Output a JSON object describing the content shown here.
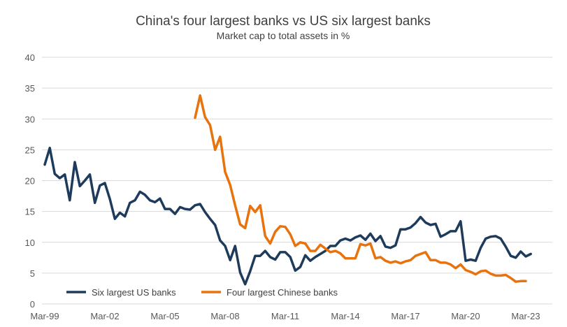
{
  "chart_data": {
    "type": "line",
    "title": "China's four largest banks vs US six largest banks",
    "subtitle": "Market cap to total assets in %",
    "xlabel": "",
    "ylabel": "",
    "x_start": "Mar-99",
    "frequency": "quarterly",
    "xticks": [
      "Mar-99",
      "Mar-02",
      "Mar-05",
      "Mar-08",
      "Mar-11",
      "Mar-14",
      "Mar-17",
      "Mar-20",
      "Mar-23"
    ],
    "yticks": [
      "0",
      "5",
      "10",
      "15",
      "20",
      "25",
      "30",
      "35",
      "40"
    ],
    "ylim": [
      0,
      40
    ],
    "grid": true,
    "legend_position": "bottom-left",
    "series": [
      {
        "name": "Six largest US banks",
        "color": "#1f3b5c",
        "values": [
          22.6,
          25.3,
          21.1,
          20.4,
          21.0,
          16.8,
          23.0,
          19.1,
          20.0,
          21.0,
          16.4,
          19.2,
          19.6,
          17.0,
          13.8,
          14.8,
          14.2,
          16.4,
          16.8,
          18.2,
          17.7,
          16.8,
          16.5,
          17.1,
          15.4,
          15.4,
          14.6,
          15.7,
          15.4,
          15.3,
          16.0,
          16.2,
          14.9,
          13.8,
          12.8,
          10.3,
          9.4,
          7.1,
          9.4,
          5.1,
          3.2,
          5.3,
          7.8,
          7.8,
          8.6,
          7.6,
          7.2,
          8.4,
          8.4,
          7.6,
          5.4,
          6.0,
          7.9,
          7.0,
          7.6,
          8.1,
          8.6,
          9.4,
          9.4,
          10.3,
          10.6,
          10.3,
          10.8,
          11.1,
          10.4,
          11.4,
          10.2,
          11.0,
          9.3,
          9.1,
          9.5,
          12.1,
          12.1,
          12.4,
          13.1,
          14.1,
          13.2,
          12.8,
          13.0,
          10.9,
          11.3,
          11.8,
          11.8,
          13.4,
          7.0,
          7.2,
          7.0,
          9.1,
          10.6,
          10.9,
          11.0,
          10.6,
          9.3,
          7.8,
          7.5,
          8.5,
          7.7,
          8.1
        ]
      },
      {
        "name": "Four largest Chinese banks",
        "color": "#e8720c",
        "values": [
          null,
          null,
          null,
          null,
          null,
          null,
          null,
          null,
          null,
          null,
          null,
          null,
          null,
          null,
          null,
          null,
          null,
          null,
          null,
          null,
          null,
          null,
          null,
          null,
          null,
          null,
          null,
          null,
          null,
          null,
          30.2,
          33.8,
          30.3,
          29.0,
          25.0,
          27.1,
          21.4,
          19.3,
          16.0,
          12.9,
          12.3,
          15.9,
          14.9,
          16.0,
          11.0,
          9.8,
          11.7,
          12.6,
          12.5,
          11.3,
          9.4,
          10.0,
          9.8,
          8.6,
          8.6,
          9.6,
          9.0,
          8.4,
          8.6,
          8.2,
          7.4,
          7.4,
          7.4,
          9.7,
          9.5,
          9.8,
          7.4,
          7.6,
          7.0,
          6.7,
          6.9,
          6.6,
          6.9,
          7.1,
          7.8,
          8.1,
          8.4,
          7.1,
          7.1,
          6.7,
          6.7,
          6.4,
          5.8,
          6.4,
          5.5,
          5.2,
          4.8,
          5.3,
          5.4,
          4.9,
          4.6,
          4.6,
          4.7,
          4.2,
          3.6,
          3.7,
          3.7
        ]
      }
    ]
  }
}
